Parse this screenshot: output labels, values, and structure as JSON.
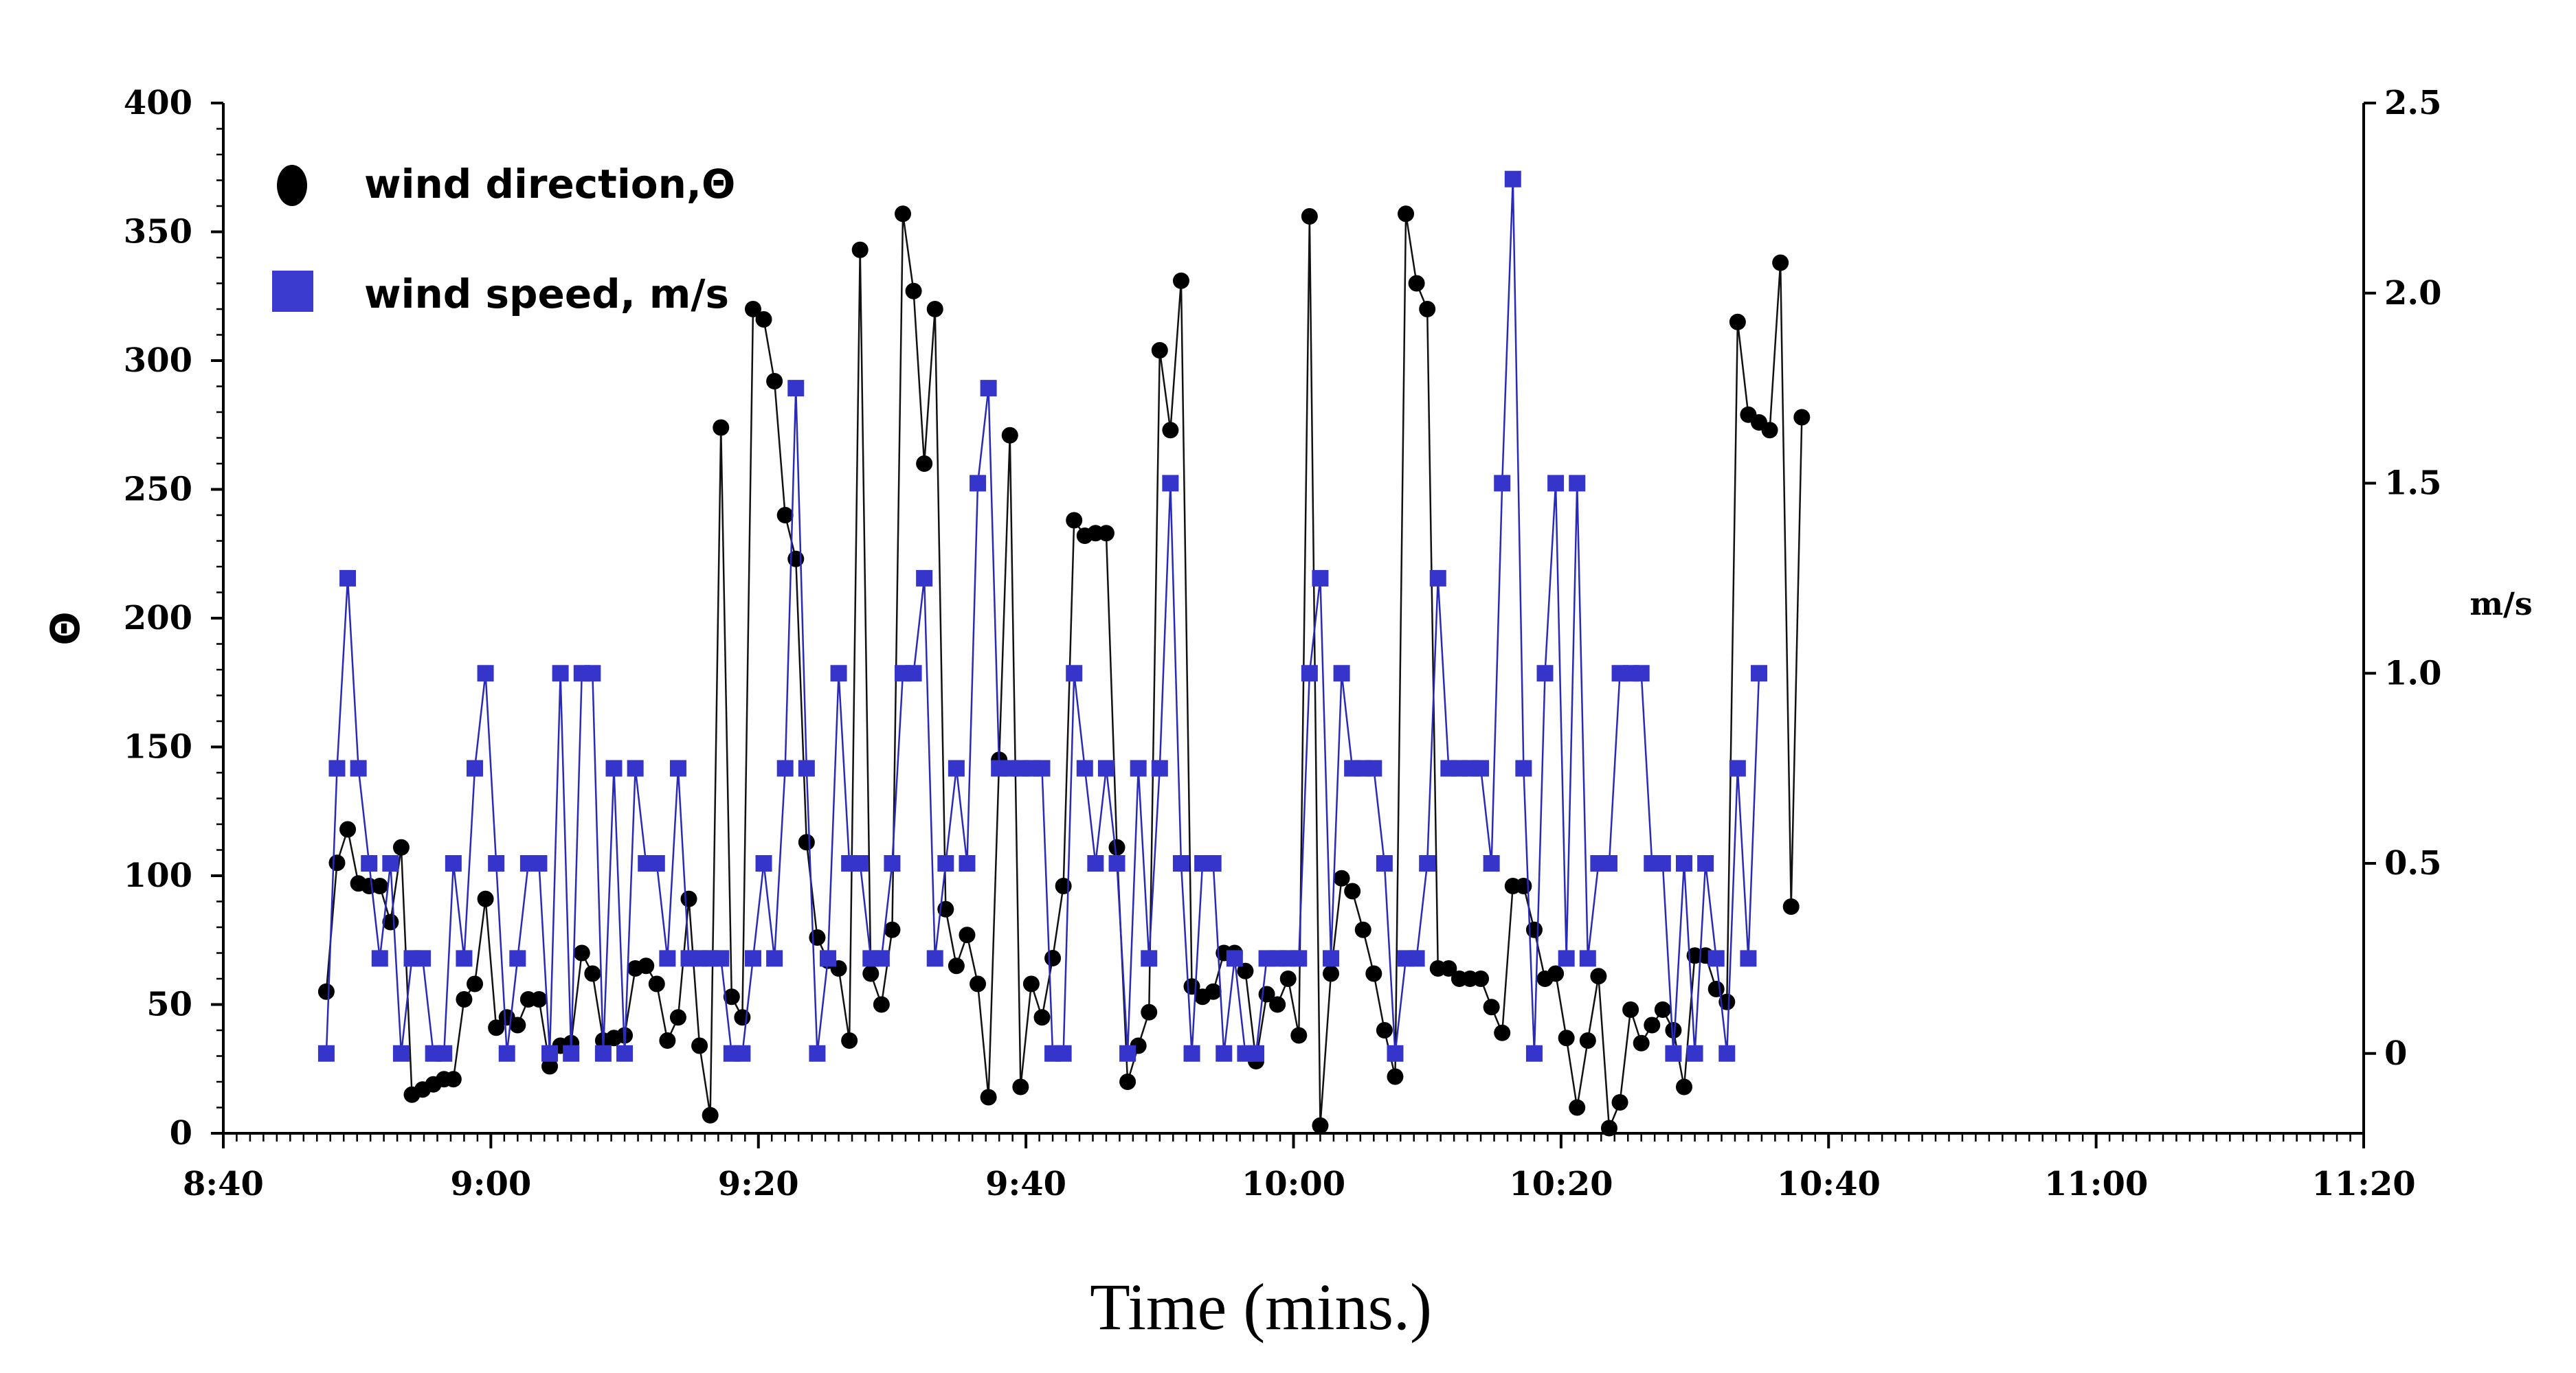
{
  "chart_data": {
    "type": "line",
    "title": "",
    "xlabel": "Time (mins.)",
    "ylabel_left": "Θ",
    "ylabel_right": "m/s",
    "grid": false,
    "legend_position": "top-left",
    "x_axis": {
      "range_minutes": [
        520,
        680
      ],
      "tick_labels": [
        "8:40",
        "9:00",
        "9:20",
        "9:40",
        "10:00",
        "10:20",
        "10:40",
        "11:00",
        "11:20"
      ],
      "tick_values": [
        520,
        540,
        560,
        580,
        600,
        620,
        640,
        660,
        680
      ]
    },
    "y_left": {
      "range": [
        0,
        400
      ],
      "tick_labels": [
        "0",
        "50",
        "100",
        "150",
        "200",
        "250",
        "300",
        "350",
        "400"
      ],
      "tick_values": [
        0,
        50,
        100,
        150,
        200,
        250,
        300,
        350,
        400
      ]
    },
    "y_right": {
      "range": [
        -0.21,
        2.5
      ],
      "tick_labels": [
        "0",
        "0.5",
        "1.0",
        "1.5",
        "2.0",
        "2.5"
      ],
      "tick_values": [
        0,
        0.5,
        1.0,
        1.5,
        2.0,
        2.5
      ]
    },
    "series": [
      {
        "name": "wind direction,Θ",
        "axis": "left",
        "marker": "circle",
        "color": "#000000",
        "points": [
          [
            527.7,
            55
          ],
          [
            528.5,
            105
          ],
          [
            529.3,
            118
          ],
          [
            530.1,
            97
          ],
          [
            530.9,
            96
          ],
          [
            531.7,
            96
          ],
          [
            532.5,
            82
          ],
          [
            533.3,
            111
          ],
          [
            534.1,
            15
          ],
          [
            534.9,
            17
          ],
          [
            535.7,
            19
          ],
          [
            536.5,
            21
          ],
          [
            537.2,
            21
          ],
          [
            538.0,
            52
          ],
          [
            538.8,
            58
          ],
          [
            539.6,
            91
          ],
          [
            540.4,
            41
          ],
          [
            541.2,
            45
          ],
          [
            542.0,
            42
          ],
          [
            542.8,
            52
          ],
          [
            543.6,
            52
          ],
          [
            544.4,
            26
          ],
          [
            545.2,
            34
          ],
          [
            546.0,
            35
          ],
          [
            546.8,
            70
          ],
          [
            547.6,
            62
          ],
          [
            548.4,
            36
          ],
          [
            549.2,
            37
          ],
          [
            550.0,
            38
          ],
          [
            550.8,
            64
          ],
          [
            551.6,
            65
          ],
          [
            552.4,
            58
          ],
          [
            553.2,
            36
          ],
          [
            554.0,
            45
          ],
          [
            554.8,
            91
          ],
          [
            555.6,
            34
          ],
          [
            556.4,
            7
          ],
          [
            557.2,
            274
          ],
          [
            558.0,
            53
          ],
          [
            558.8,
            45
          ],
          [
            559.6,
            320
          ],
          [
            560.4,
            316
          ],
          [
            561.2,
            292
          ],
          [
            562.0,
            240
          ],
          [
            562.8,
            223
          ],
          [
            563.6,
            113
          ],
          [
            564.4,
            76
          ],
          [
            565.2,
            67
          ],
          [
            566.0,
            64
          ],
          [
            566.8,
            36
          ],
          [
            567.6,
            343
          ],
          [
            568.4,
            62
          ],
          [
            569.2,
            50
          ],
          [
            570.0,
            79
          ],
          [
            570.8,
            357
          ],
          [
            571.6,
            327
          ],
          [
            572.4,
            260
          ],
          [
            573.2,
            320
          ],
          [
            574.0,
            87
          ],
          [
            574.8,
            65
          ],
          [
            575.6,
            77
          ],
          [
            576.4,
            58
          ],
          [
            577.2,
            14
          ],
          [
            578.0,
            145
          ],
          [
            578.8,
            271
          ],
          [
            579.6,
            18
          ],
          [
            580.4,
            58
          ],
          [
            581.2,
            45
          ],
          [
            582.0,
            68
          ],
          [
            582.8,
            96
          ],
          [
            583.6,
            238
          ],
          [
            584.4,
            232
          ],
          [
            585.2,
            233
          ],
          [
            586.0,
            233
          ],
          [
            586.8,
            111
          ],
          [
            587.6,
            20
          ],
          [
            588.4,
            34
          ],
          [
            589.2,
            47
          ],
          [
            590.0,
            304
          ],
          [
            590.8,
            273
          ],
          [
            591.6,
            331
          ],
          [
            592.4,
            57
          ],
          [
            593.2,
            53
          ],
          [
            594.0,
            55
          ],
          [
            594.8,
            70
          ],
          [
            595.6,
            70
          ],
          [
            596.4,
            63
          ],
          [
            597.2,
            28
          ],
          [
            598.0,
            54
          ],
          [
            598.8,
            50
          ],
          [
            599.6,
            60
          ],
          [
            600.4,
            38
          ],
          [
            601.2,
            356
          ],
          [
            602.0,
            3
          ],
          [
            602.8,
            62
          ],
          [
            603.6,
            99
          ],
          [
            604.4,
            94
          ],
          [
            605.2,
            79
          ],
          [
            606.0,
            62
          ],
          [
            606.8,
            40
          ],
          [
            607.6,
            22
          ],
          [
            608.4,
            357
          ],
          [
            609.2,
            330
          ],
          [
            610.0,
            320
          ],
          [
            610.8,
            64
          ],
          [
            611.6,
            64
          ],
          [
            612.4,
            60
          ],
          [
            613.2,
            60
          ],
          [
            614.0,
            60
          ],
          [
            614.8,
            49
          ],
          [
            615.6,
            39
          ],
          [
            616.4,
            96
          ],
          [
            617.2,
            96
          ],
          [
            618.0,
            79
          ],
          [
            618.8,
            60
          ],
          [
            619.6,
            62
          ],
          [
            620.4,
            37
          ],
          [
            621.2,
            10
          ],
          [
            622.0,
            36
          ],
          [
            622.8,
            61
          ],
          [
            623.6,
            2
          ],
          [
            624.4,
            12
          ],
          [
            625.2,
            48
          ],
          [
            626.0,
            35
          ],
          [
            626.8,
            42
          ],
          [
            627.6,
            48
          ],
          [
            628.4,
            40
          ],
          [
            629.2,
            18
          ],
          [
            630.0,
            69
          ],
          [
            630.8,
            69
          ],
          [
            631.6,
            56
          ],
          [
            632.4,
            51
          ],
          [
            633.2,
            315
          ],
          [
            634.0,
            279
          ],
          [
            634.8,
            276
          ],
          [
            635.6,
            273
          ],
          [
            636.4,
            338
          ],
          [
            637.2,
            88
          ],
          [
            638.0,
            278
          ]
        ]
      },
      {
        "name": "wind speed, m/s",
        "axis": "right",
        "marker": "square",
        "color": "#3333cc",
        "points": [
          [
            527.7,
            0.0
          ],
          [
            528.5,
            0.75
          ],
          [
            529.3,
            1.25
          ],
          [
            530.1,
            0.75
          ],
          [
            530.9,
            0.5
          ],
          [
            531.7,
            0.25
          ],
          [
            532.5,
            0.5
          ],
          [
            533.3,
            0.0
          ],
          [
            534.1,
            0.25
          ],
          [
            534.9,
            0.25
          ],
          [
            535.7,
            0.0
          ],
          [
            536.5,
            0.0
          ],
          [
            537.2,
            0.5
          ],
          [
            538.0,
            0.25
          ],
          [
            538.8,
            0.75
          ],
          [
            539.6,
            1.0
          ],
          [
            540.4,
            0.5
          ],
          [
            541.2,
            0.0
          ],
          [
            542.0,
            0.25
          ],
          [
            542.8,
            0.5
          ],
          [
            543.6,
            0.5
          ],
          [
            544.4,
            0.0
          ],
          [
            545.2,
            1.0
          ],
          [
            546.0,
            0.0
          ],
          [
            546.8,
            1.0
          ],
          [
            547.6,
            1.0
          ],
          [
            548.4,
            0.0
          ],
          [
            549.2,
            0.75
          ],
          [
            550.0,
            0.0
          ],
          [
            550.8,
            0.75
          ],
          [
            551.6,
            0.5
          ],
          [
            552.4,
            0.5
          ],
          [
            553.2,
            0.25
          ],
          [
            554.0,
            0.75
          ],
          [
            554.8,
            0.25
          ],
          [
            555.6,
            0.25
          ],
          [
            556.4,
            0.25
          ],
          [
            557.2,
            0.25
          ],
          [
            558.0,
            0.0
          ],
          [
            558.8,
            0.0
          ],
          [
            559.6,
            0.25
          ],
          [
            560.4,
            0.5
          ],
          [
            561.2,
            0.25
          ],
          [
            562.0,
            0.75
          ],
          [
            562.8,
            1.75
          ],
          [
            563.6,
            0.75
          ],
          [
            564.4,
            0.0
          ],
          [
            565.2,
            0.25
          ],
          [
            566.0,
            1.0
          ],
          [
            566.8,
            0.5
          ],
          [
            567.6,
            0.5
          ],
          [
            568.4,
            0.25
          ],
          [
            569.2,
            0.25
          ],
          [
            570.0,
            0.5
          ],
          [
            570.8,
            1.0
          ],
          [
            571.6,
            1.0
          ],
          [
            572.4,
            1.25
          ],
          [
            573.2,
            0.25
          ],
          [
            574.0,
            0.5
          ],
          [
            574.8,
            0.75
          ],
          [
            575.6,
            0.5
          ],
          [
            576.4,
            1.5
          ],
          [
            577.2,
            1.75
          ],
          [
            578.0,
            0.75
          ],
          [
            578.8,
            0.75
          ],
          [
            579.6,
            0.75
          ],
          [
            580.4,
            0.75
          ],
          [
            581.2,
            0.75
          ],
          [
            582.0,
            0.0
          ],
          [
            582.8,
            0.0
          ],
          [
            583.6,
            1.0
          ],
          [
            584.4,
            0.75
          ],
          [
            585.2,
            0.5
          ],
          [
            586.0,
            0.75
          ],
          [
            586.8,
            0.5
          ],
          [
            587.6,
            0.0
          ],
          [
            588.4,
            0.75
          ],
          [
            589.2,
            0.25
          ],
          [
            590.0,
            0.75
          ],
          [
            590.8,
            1.5
          ],
          [
            591.6,
            0.5
          ],
          [
            592.4,
            0.0
          ],
          [
            593.2,
            0.5
          ],
          [
            594.0,
            0.5
          ],
          [
            594.8,
            0.0
          ],
          [
            595.6,
            0.25
          ],
          [
            596.4,
            0.0
          ],
          [
            597.2,
            0.0
          ],
          [
            598.0,
            0.25
          ],
          [
            598.8,
            0.25
          ],
          [
            599.6,
            0.25
          ],
          [
            600.4,
            0.25
          ],
          [
            601.2,
            1.0
          ],
          [
            602.0,
            1.25
          ],
          [
            602.8,
            0.25
          ],
          [
            603.6,
            1.0
          ],
          [
            604.4,
            0.75
          ],
          [
            605.2,
            0.75
          ],
          [
            606.0,
            0.75
          ],
          [
            606.8,
            0.5
          ],
          [
            607.6,
            0.0
          ],
          [
            608.4,
            0.25
          ],
          [
            609.2,
            0.25
          ],
          [
            610.0,
            0.5
          ],
          [
            610.8,
            1.25
          ],
          [
            611.6,
            0.75
          ],
          [
            612.4,
            0.75
          ],
          [
            613.2,
            0.75
          ],
          [
            614.0,
            0.75
          ],
          [
            614.8,
            0.5
          ],
          [
            615.6,
            1.5
          ],
          [
            616.4,
            2.3
          ],
          [
            617.2,
            0.75
          ],
          [
            618.0,
            0.0
          ],
          [
            618.8,
            1.0
          ],
          [
            619.6,
            1.5
          ],
          [
            620.4,
            0.25
          ],
          [
            621.2,
            1.5
          ],
          [
            622.0,
            0.25
          ],
          [
            622.8,
            0.5
          ],
          [
            623.6,
            0.5
          ],
          [
            624.4,
            1.0
          ],
          [
            625.2,
            1.0
          ],
          [
            626.0,
            1.0
          ],
          [
            626.8,
            0.5
          ],
          [
            627.6,
            0.5
          ],
          [
            628.4,
            0.0
          ],
          [
            629.2,
            0.5
          ],
          [
            630.0,
            0.0
          ],
          [
            630.8,
            0.5
          ],
          [
            631.6,
            0.25
          ],
          [
            632.4,
            0.0
          ],
          [
            633.2,
            0.75
          ],
          [
            634.0,
            0.25
          ],
          [
            634.8,
            1.0
          ]
        ]
      }
    ]
  }
}
